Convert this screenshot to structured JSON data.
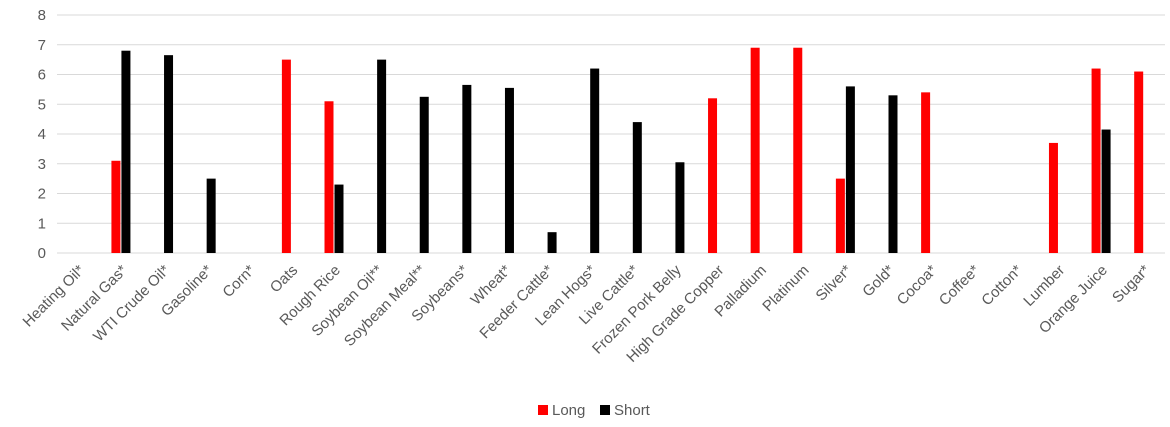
{
  "chart_data": {
    "type": "bar",
    "title": "",
    "xlabel": "",
    "ylabel": "",
    "ylim": [
      0,
      8
    ],
    "yticks": [
      0,
      1,
      2,
      3,
      4,
      5,
      6,
      7,
      8
    ],
    "grid": true,
    "legend_position": "bottom",
    "categories": [
      "Heating Oil*",
      "Natural Gas*",
      "WTI Crude Oil*",
      "Gasoline*",
      "Corn*",
      "Oats",
      "Rough Rice",
      "Soybean Oil**",
      "Soybean Meal**",
      "Soybeans*",
      "Wheat*",
      "Feeder Cattle*",
      "Lean Hogs*",
      "Live Cattle*",
      "Frozen Pork Belly",
      "High Grade Copper",
      "Palladium",
      "Platinum",
      "Silver*",
      "Gold*",
      "Cocoa*",
      "Coffee*",
      "Cotton*",
      "Lumber",
      "Orange Juice",
      "Sugar*"
    ],
    "series": [
      {
        "name": "Long",
        "color": "#ff0000",
        "values": [
          null,
          3.1,
          null,
          null,
          null,
          6.5,
          5.1,
          null,
          null,
          null,
          null,
          null,
          null,
          null,
          null,
          5.2,
          6.9,
          6.9,
          2.5,
          null,
          5.4,
          null,
          null,
          3.7,
          6.2,
          6.1
        ]
      },
      {
        "name": "Short",
        "color": "#000000",
        "values": [
          null,
          6.8,
          6.65,
          2.5,
          null,
          null,
          2.3,
          6.5,
          5.25,
          5.65,
          5.55,
          0.7,
          6.2,
          4.4,
          3.05,
          null,
          null,
          null,
          5.6,
          5.3,
          null,
          null,
          null,
          null,
          4.15,
          null
        ]
      }
    ]
  }
}
